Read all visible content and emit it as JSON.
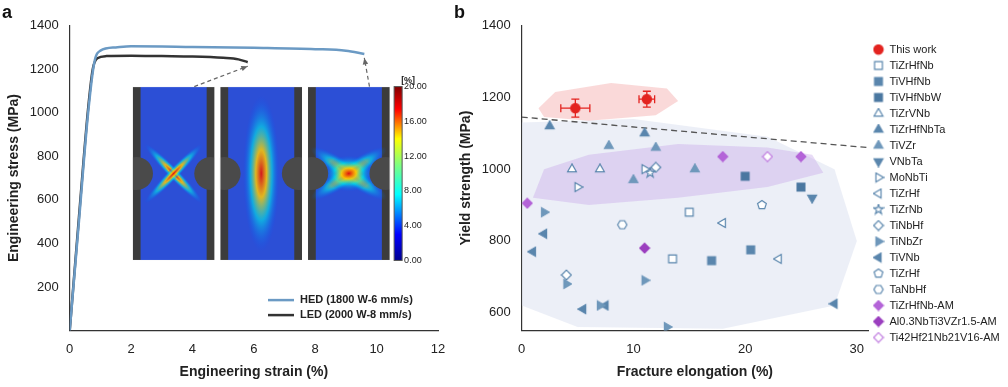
{
  "chart_data": [
    {
      "type": "line",
      "panel_label": "a",
      "x_label": "Engineering strain (%)",
      "y_label": "Engineering stress (MPa)",
      "xlim": [
        0,
        12
      ],
      "xticks": [
        0,
        2,
        4,
        6,
        8,
        10,
        12
      ],
      "ylim": [
        0,
        1400
      ],
      "yticks": [
        200,
        400,
        600,
        800,
        1000,
        1200,
        1400
      ],
      "grid": false,
      "legend": "lower right",
      "series": [
        {
          "name": "HED (1800 W-6 mm/s)",
          "color": "#6b9ac4",
          "x": [
            0,
            0.3,
            0.6,
            0.8,
            1.0,
            1.5,
            2,
            4,
            6,
            8,
            9,
            9.6
          ],
          "values": [
            0,
            500,
            1000,
            1230,
            1285,
            1300,
            1305,
            1302,
            1298,
            1292,
            1285,
            1270
          ]
        },
        {
          "name": "LED (2000 W-8 mm/s)",
          "color": "#333333",
          "x": [
            0,
            0.3,
            0.6,
            0.75,
            0.9,
            1.2,
            2,
            3,
            4,
            5,
            5.5,
            5.8
          ],
          "values": [
            0,
            520,
            1020,
            1200,
            1250,
            1260,
            1262,
            1260,
            1258,
            1252,
            1245,
            1232
          ]
        }
      ],
      "colorbar": {
        "label": "[%]",
        "range": [
          0,
          20
        ],
        "ticks": [
          {
            "value": 20,
            "label": "20.00"
          },
          {
            "value": 16,
            "label": "16.00"
          },
          {
            "value": 12,
            "label": "12.00"
          },
          {
            "value": 8,
            "label": "8.00"
          },
          {
            "value": 4,
            "label": "4.00"
          },
          {
            "value": 0,
            "label": "0.00"
          }
        ]
      }
    },
    {
      "type": "scatter",
      "panel_label": "b",
      "x_label": "Fracture elongation (%)",
      "y_label": "Yield strength (MPa)",
      "xlim": [
        0,
        31
      ],
      "xticks": [
        0,
        10,
        20,
        30
      ],
      "ylim": [
        550,
        1400
      ],
      "yticks": [
        600,
        800,
        1000,
        1200,
        1400
      ],
      "grid": false,
      "legend": "right",
      "series": [
        {
          "name": "This work",
          "marker": "circle",
          "color": "#e3231f",
          "x": [
            4.8,
            11.2
          ],
          "values": [
            1170,
            1195
          ],
          "x_error": [
            1.3,
            0.7
          ],
          "y_error": [
            25,
            22
          ]
        },
        {
          "name": "TiZrHfNb",
          "marker": "square-open",
          "color": "#5a86ad",
          "x": [
            13.5,
            15
          ],
          "values": [
            750,
            880
          ]
        },
        {
          "name": "TiVHfNb",
          "marker": "square",
          "color": "#5a86ad",
          "x": [
            17,
            20.5
          ],
          "values": [
            745,
            775
          ]
        },
        {
          "name": "TiVHfNbW",
          "marker": "square",
          "color": "#4a77a0",
          "x": [
            20,
            25
          ],
          "values": [
            980,
            950
          ]
        },
        {
          "name": "TiZrVNb",
          "marker": "triangle-up-open",
          "color": "#5a86ad",
          "x": [
            4.5,
            7
          ],
          "values": [
            1000,
            1000
          ]
        },
        {
          "name": "TiZrHfNbTa",
          "marker": "triangle-up",
          "color": "#5a86ad",
          "x": [
            2.5,
            11
          ],
          "values": [
            1120,
            1100
          ]
        },
        {
          "name": "TiVZr",
          "marker": "triangle-up",
          "color": "#6f98bb",
          "x": [
            7.8,
            12,
            10,
            15.5
          ],
          "values": [
            1065,
            1060,
            970,
            1000
          ]
        },
        {
          "name": "VNbTa",
          "marker": "triangle-down",
          "color": "#5a86ad",
          "x": [
            26
          ],
          "values": [
            920
          ]
        },
        {
          "name": "MoNbTi",
          "marker": "triangle-right-open",
          "color": "#5a86ad",
          "x": [
            5,
            11
          ],
          "values": [
            950,
            1000
          ]
        },
        {
          "name": "TiZrHf",
          "marker": "triangle-left-open",
          "color": "#5a86ad",
          "x": [
            18,
            23
          ],
          "values": [
            850,
            750
          ]
        },
        {
          "name": "TiZrNb",
          "marker": "star-open",
          "color": "#5a86ad",
          "x": [
            11.5
          ],
          "values": [
            990
          ]
        },
        {
          "name": "TiNbHf",
          "marker": "diamond-open",
          "color": "#5a86ad",
          "x": [
            4,
            12
          ],
          "values": [
            705,
            1005
          ]
        },
        {
          "name": "TiNbZr",
          "marker": "triangle-right",
          "color": "#6f98bb",
          "x": [
            2,
            4,
            7,
            11,
            13
          ],
          "values": [
            880,
            680,
            620,
            690,
            560
          ]
        },
        {
          "name": "TiVNb",
          "marker": "triangle-left",
          "color": "#5a86ad",
          "x": [
            1,
            2,
            5.5,
            7.5,
            28
          ],
          "values": [
            770,
            820,
            610,
            620,
            625
          ]
        },
        {
          "name": "TiZrHf",
          "marker": "pentagon-open",
          "color": "#5a86ad",
          "x": [
            21.5
          ],
          "values": [
            900
          ]
        },
        {
          "name": "TaNbHf",
          "marker": "hexagon-open",
          "color": "#5a86ad",
          "x": [
            9
          ],
          "values": [
            845
          ]
        },
        {
          "name": "TiZrHfNb-AM",
          "marker": "diamond",
          "color": "#b464d8",
          "x": [
            0.5,
            18,
            25
          ],
          "values": [
            905,
            1035,
            1035
          ]
        },
        {
          "name": "Al0.3NbTi3VZr1.5-AM",
          "marker": "diamond",
          "color": "#9b3fbf",
          "x": [
            11
          ],
          "values": [
            780
          ]
        },
        {
          "name": "Ti42Hf21Nb21V16-AM",
          "marker": "diamond-open",
          "color": "#c07ce0",
          "x": [
            22
          ],
          "values": [
            1035
          ]
        }
      ],
      "reference_line": {
        "line_style": "dashed",
        "color": "#555555",
        "x": [
          0,
          31
        ],
        "values": [
          1145,
          1060
        ]
      },
      "regions": [
        {
          "color": "rgba(220,225,240,0.55)",
          "x": [
            0,
            10,
            22,
            28,
            30,
            28,
            18,
            5,
            0
          ],
          "values": [
            1130,
            1140,
            1090,
            1000,
            800,
            620,
            555,
            560,
            620
          ]
        },
        {
          "color": "rgba(205,175,235,0.45)",
          "x": [
            1,
            2,
            6,
            14,
            22,
            26,
            27,
            22,
            14,
            6
          ],
          "values": [
            920,
            1000,
            1040,
            1070,
            1060,
            1040,
            990,
            950,
            920,
            900
          ]
        },
        {
          "color": "rgba(245,170,170,0.45)",
          "x": [
            1.5,
            3,
            8,
            13,
            14,
            12,
            6,
            2
          ],
          "values": [
            1170,
            1215,
            1240,
            1225,
            1190,
            1150,
            1135,
            1145
          ]
        }
      ]
    }
  ]
}
